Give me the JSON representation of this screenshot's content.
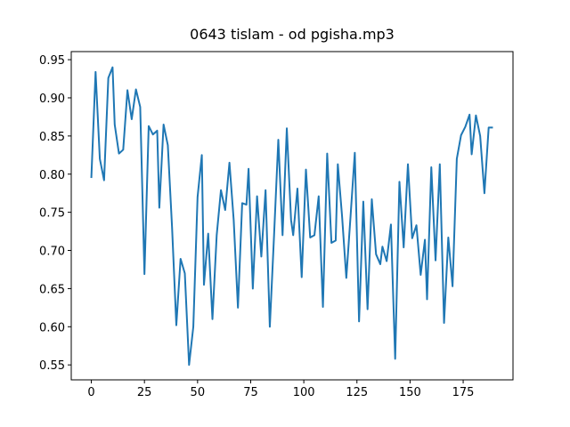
{
  "chart_data": {
    "type": "line",
    "title": "0643 tislam - od pgisha.mp3",
    "x": [
      0,
      2,
      4,
      6,
      8,
      10,
      11,
      13,
      15,
      17,
      19,
      21,
      23,
      25,
      27,
      29,
      31,
      32,
      34,
      36,
      38,
      40,
      42,
      44,
      46,
      48,
      50,
      52,
      53,
      55,
      57,
      59,
      61,
      63,
      65,
      67,
      69,
      71,
      73,
      74,
      76,
      78,
      80,
      82,
      84,
      86,
      88,
      90,
      92,
      94,
      95,
      97,
      99,
      101,
      103,
      105,
      107,
      109,
      111,
      113,
      115,
      116,
      118,
      120,
      122,
      124,
      126,
      128,
      130,
      132,
      134,
      136,
      137,
      139,
      141,
      143,
      145,
      147,
      149,
      151,
      153,
      155,
      157,
      158,
      160,
      162,
      164,
      166,
      168,
      170,
      172,
      174,
      176,
      178,
      179,
      181,
      183,
      185,
      187,
      189
    ],
    "series": [
      {
        "color": "#1f77b4",
        "values": [
          0.795,
          0.934,
          0.82,
          0.792,
          0.926,
          0.94,
          0.865,
          0.827,
          0.832,
          0.91,
          0.872,
          0.911,
          0.888,
          0.669,
          0.863,
          0.852,
          0.857,
          0.756,
          0.865,
          0.838,
          0.73,
          0.602,
          0.689,
          0.67,
          0.55,
          0.6,
          0.77,
          0.825,
          0.655,
          0.722,
          0.61,
          0.72,
          0.779,
          0.753,
          0.815,
          0.74,
          0.625,
          0.762,
          0.76,
          0.807,
          0.65,
          0.771,
          0.692,
          0.779,
          0.6,
          0.72,
          0.845,
          0.72,
          0.86,
          0.74,
          0.72,
          0.781,
          0.665,
          0.806,
          0.717,
          0.72,
          0.771,
          0.626,
          0.827,
          0.71,
          0.713,
          0.813,
          0.745,
          0.664,
          0.745,
          0.828,
          0.607,
          0.764,
          0.623,
          0.767,
          0.695,
          0.682,
          0.705,
          0.686,
          0.734,
          0.558,
          0.79,
          0.704,
          0.813,
          0.716,
          0.733,
          0.668,
          0.714,
          0.636,
          0.809,
          0.687,
          0.813,
          0.605,
          0.717,
          0.653,
          0.82,
          0.851,
          0.862,
          0.878,
          0.826,
          0.877,
          0.85,
          0.775,
          0.861,
          0.861
        ]
      }
    ],
    "xlim": [
      -9.45,
      198.45
    ],
    "xticks": [
      0,
      25,
      50,
      75,
      100,
      125,
      150,
      175
    ],
    "ylim": [
      0.5304,
      0.9606
    ],
    "yticks": [
      0.55,
      {
        "value": 0.6,
        "label": "0.60"
      },
      0.65,
      {
        "value": 0.7,
        "label": "0.70"
      },
      0.75,
      {
        "value": 0.8,
        "label": "0.80"
      },
      0.85,
      {
        "value": 0.9,
        "label": "0.90"
      },
      0.95
    ],
    "grid": false
  }
}
